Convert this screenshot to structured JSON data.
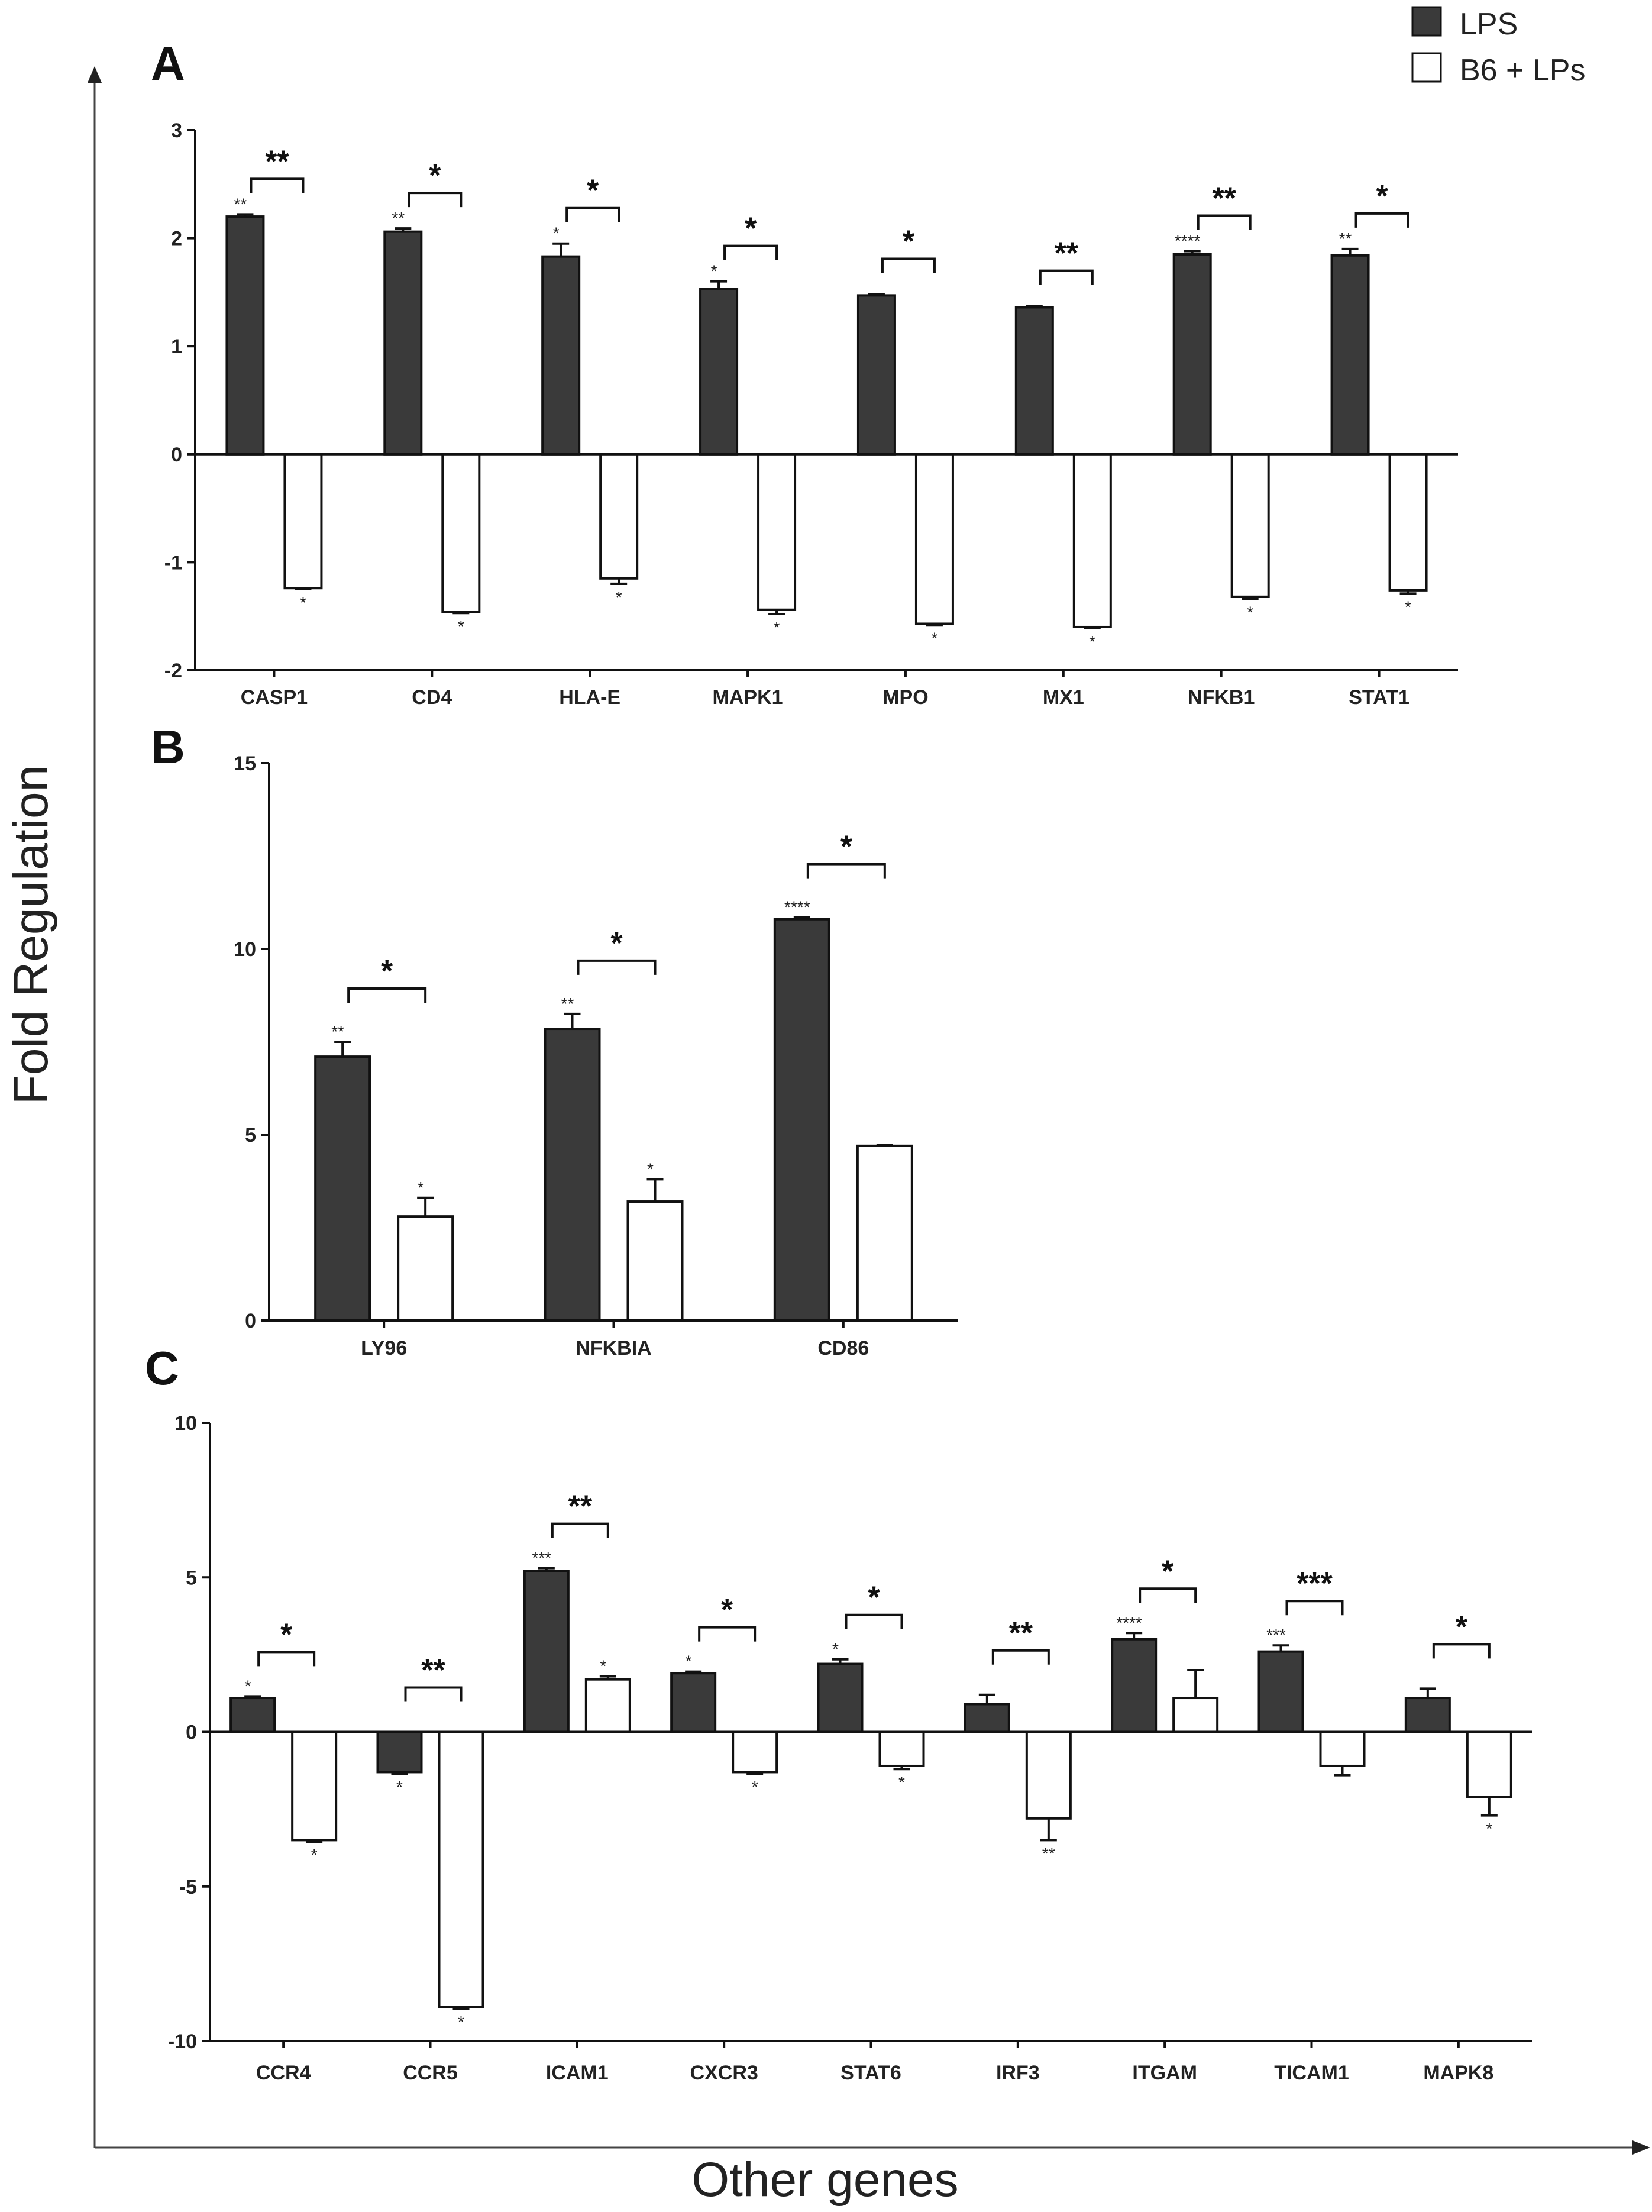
{
  "figure": {
    "ylabel": "Fold Regulation",
    "xlabel": "Other genes",
    "legend": [
      {
        "label": "LPS",
        "color": "#3a3a3a"
      },
      {
        "label": "B6 + LPs",
        "color": "#ffffff"
      }
    ]
  },
  "chart_data": [
    {
      "type": "bar",
      "panel": "A",
      "categories": [
        "CASP1",
        "CD4",
        "HLA-E",
        "MAPK1",
        "MPO",
        "MX1",
        "NFKB1",
        "STAT1"
      ],
      "series": [
        {
          "name": "LPS",
          "values": [
            2.2,
            2.06,
            1.83,
            1.53,
            1.47,
            1.36,
            1.85,
            1.84
          ],
          "errors": [
            0.02,
            0.03,
            0.12,
            0.07,
            0.01,
            0.01,
            0.03,
            0.06
          ],
          "marks": [
            "**",
            "**",
            "*",
            "*",
            "",
            "",
            "****",
            "**"
          ]
        },
        {
          "name": "B6 + LPs",
          "values": [
            -1.24,
            -1.46,
            -1.15,
            -1.44,
            -1.57,
            -1.6,
            -1.32,
            -1.26
          ],
          "errors": [
            0.01,
            0.01,
            0.05,
            0.04,
            0.01,
            0.01,
            0.02,
            0.03
          ],
          "marks": [
            "*",
            "*",
            "*",
            "*",
            "*",
            "*",
            "*",
            "*"
          ]
        }
      ],
      "brackets": [
        "**",
        "*",
        "*",
        "*",
        "*",
        "**",
        "**",
        "*"
      ],
      "ylim": [
        -2,
        3
      ],
      "yticks": [
        -2,
        -1,
        0,
        1,
        2,
        3
      ]
    },
    {
      "type": "bar",
      "panel": "B",
      "categories": [
        "LY96",
        "NFKBIA",
        "CD86"
      ],
      "series": [
        {
          "name": "LPS",
          "values": [
            7.1,
            7.85,
            10.8
          ],
          "errors": [
            0.4,
            0.4,
            0.05
          ],
          "marks": [
            "**",
            "**",
            "****"
          ]
        },
        {
          "name": "B6 + LPs",
          "values": [
            2.8,
            3.2,
            4.7
          ],
          "errors": [
            0.5,
            0.6,
            0.03
          ],
          "marks": [
            "*",
            "*",
            ""
          ]
        }
      ],
      "brackets": [
        "*",
        "*",
        "*"
      ],
      "ylim": [
        0,
        15
      ],
      "yticks": [
        0,
        5,
        10,
        15
      ]
    },
    {
      "type": "bar",
      "panel": "C",
      "categories": [
        "CCR4",
        "CCR5",
        "ICAM1",
        "CXCR3",
        "STAT6",
        "IRF3",
        "ITGAM",
        "TICAM1",
        "MAPK8"
      ],
      "series": [
        {
          "name": "LPS",
          "values": [
            1.1,
            -1.3,
            5.2,
            1.9,
            2.2,
            0.9,
            3.0,
            2.6,
            1.1
          ],
          "errors": [
            0.05,
            0.05,
            0.1,
            0.05,
            0.15,
            0.3,
            0.2,
            0.2,
            0.3
          ],
          "marks": [
            "*",
            "*",
            "***",
            "*",
            "*",
            "",
            "****",
            "***",
            ""
          ]
        },
        {
          "name": "B6 + LPs",
          "values": [
            -3.5,
            -8.9,
            1.7,
            -1.3,
            -1.1,
            -2.8,
            1.1,
            -1.1,
            -2.1
          ],
          "errors": [
            0.05,
            0.05,
            0.1,
            0.05,
            0.1,
            0.7,
            0.9,
            0.3,
            0.6
          ],
          "marks": [
            "*",
            "*",
            "*",
            "*",
            "*",
            "**",
            "",
            "",
            "*"
          ]
        }
      ],
      "brackets": [
        "*",
        "**",
        "**",
        "*",
        "*",
        "**",
        "*",
        "***",
        "*"
      ],
      "ylim": [
        -10,
        10
      ],
      "yticks": [
        -10,
        -5,
        0,
        5,
        10
      ]
    }
  ]
}
